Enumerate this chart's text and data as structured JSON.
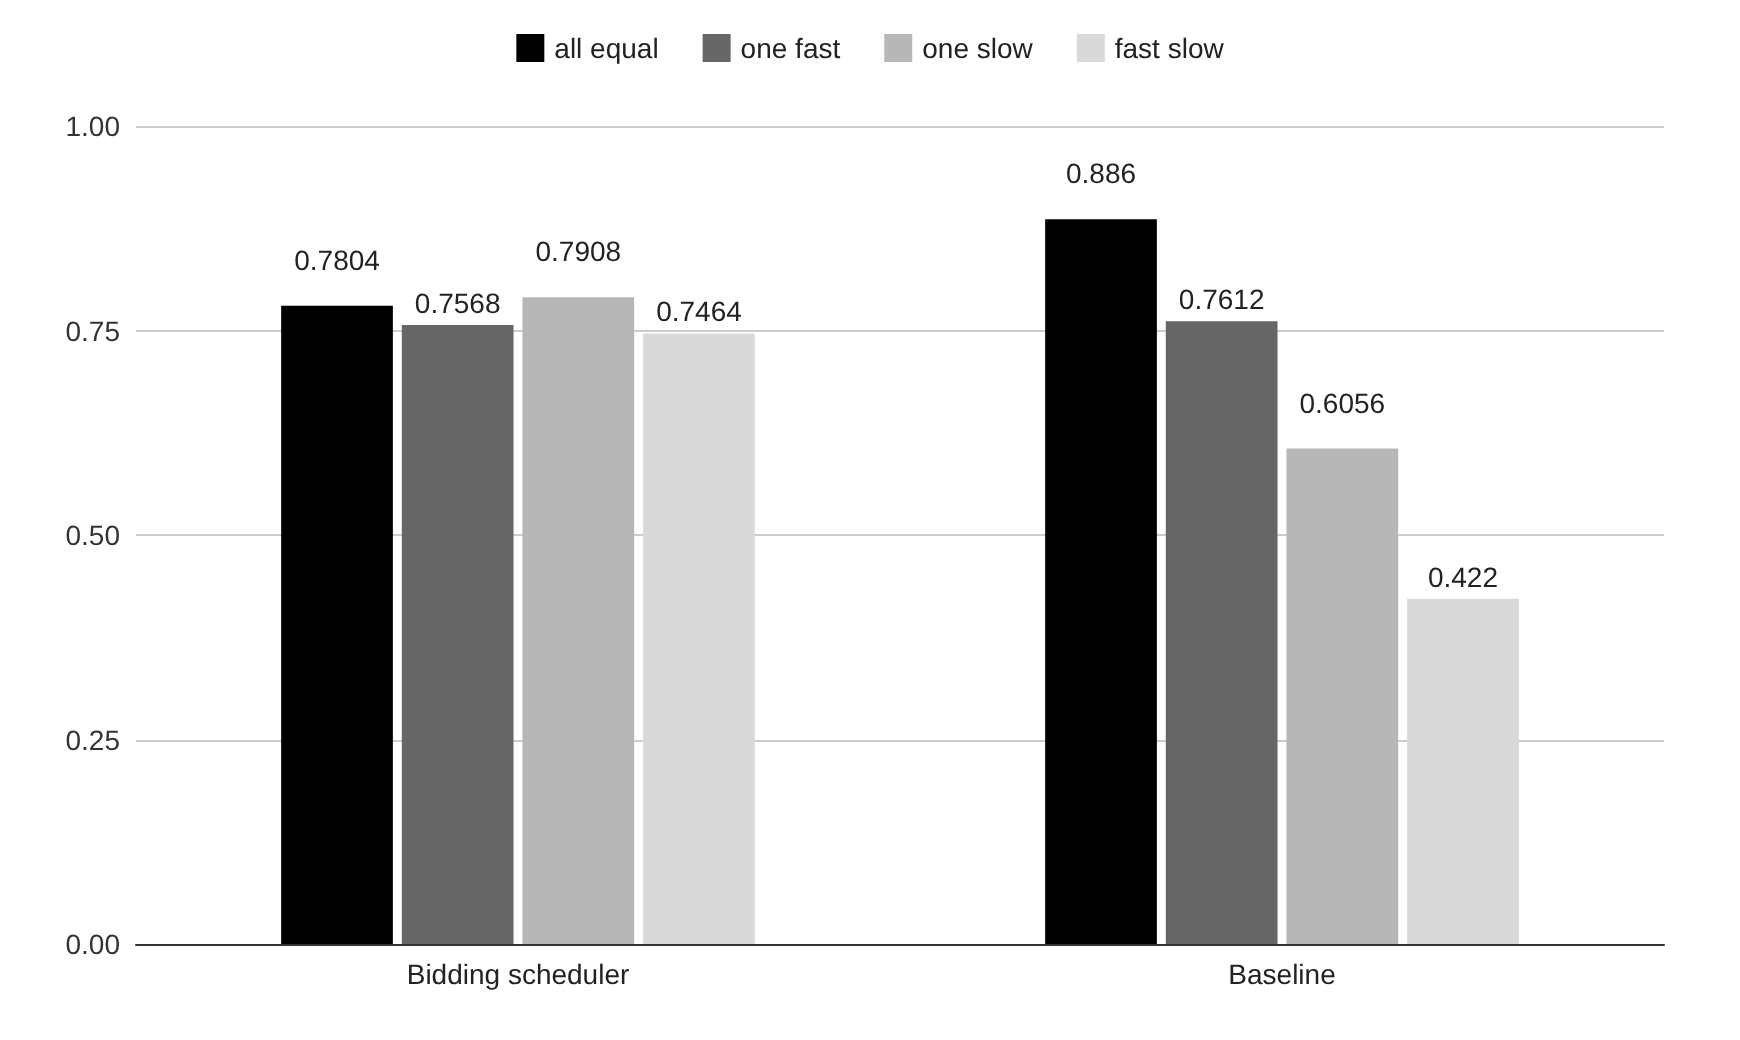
{
  "chart_data": {
    "type": "bar",
    "categories": [
      "Bidding scheduler",
      "Baseline"
    ],
    "series": [
      {
        "name": "all equal",
        "color": "#000000",
        "values": [
          0.7804,
          0.886
        ]
      },
      {
        "name": "one fast",
        "color": "#666666",
        "values": [
          0.7568,
          0.7612
        ]
      },
      {
        "name": "one slow",
        "color": "#b7b7b7",
        "values": [
          0.7908,
          0.6056
        ]
      },
      {
        "name": "fast slow",
        "color": "#d9d9d9",
        "values": [
          0.7464,
          0.422
        ]
      }
    ],
    "ylim": [
      0,
      1
    ],
    "yticks": [
      {
        "value": 0,
        "label": "0.00"
      },
      {
        "value": 0.25,
        "label": "0.25"
      },
      {
        "value": 0.5,
        "label": "0.50"
      },
      {
        "value": 0.75,
        "label": "0.75"
      },
      {
        "value": 1,
        "label": "1.00"
      }
    ],
    "grid": "y",
    "legend": "top",
    "data_labels": true
  }
}
